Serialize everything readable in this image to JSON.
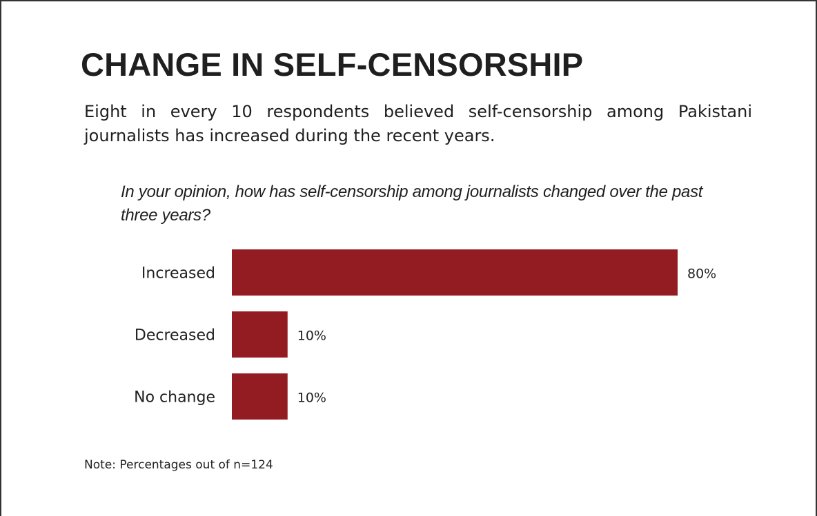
{
  "title": "CHANGE IN SELF-CENSORSHIP",
  "subtitle": "Eight in every 10 respondents believed self-censorship among Pakistani journalists has increased during the recent years.",
  "question": "In your opinion, how has self-censorship among journalists changed over the past three years?",
  "note": "Note: Percentages out of n=124",
  "colors": {
    "bar": "#921c22",
    "text": "#1f1f1f",
    "frame": "#333333"
  },
  "chart_data": {
    "type": "bar",
    "orientation": "horizontal",
    "categories": [
      "Increased",
      "Decreased",
      "No change"
    ],
    "values": [
      80,
      10,
      10
    ],
    "value_labels": [
      "80%",
      "10%",
      "10%"
    ],
    "unit": "%",
    "xlim": [
      0,
      80
    ],
    "grid": false,
    "legend": "none"
  }
}
